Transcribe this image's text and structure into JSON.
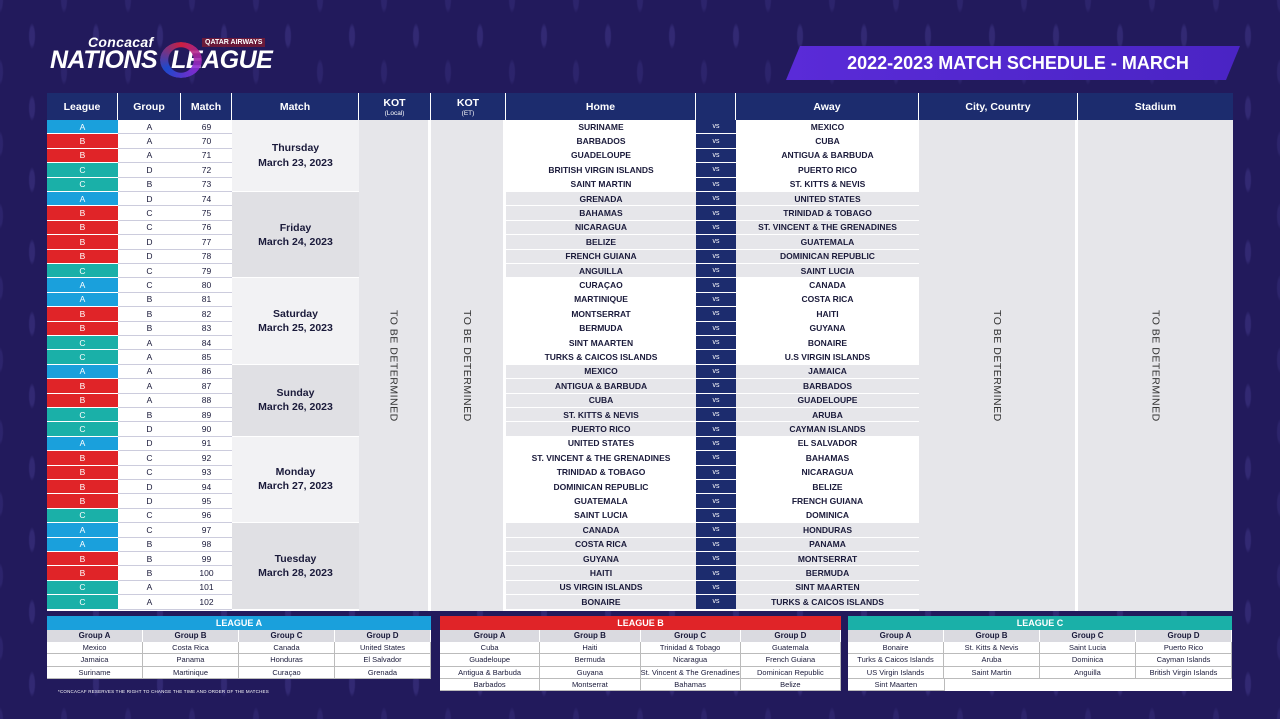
{
  "logo": {
    "small": "Concacaf",
    "big_left": "NATIONS",
    "big_right": "LEAGUE",
    "sponsor": "QATAR AIRWAYS"
  },
  "title": "2022-2023 MATCH SCHEDULE - MARCH",
  "headers": {
    "league": "League",
    "group": "Group",
    "match": "Match",
    "match_day": "Match",
    "kot_local": "KOT",
    "kot_local_sub": "(Local)",
    "kot_et": "KOT",
    "kot_et_sub": "(ET)",
    "home": "Home",
    "away": "Away",
    "city": "City, Country",
    "stadium": "Stadium"
  },
  "tbd": "TO BE DETERMINED",
  "vs": "vs",
  "league_colors": {
    "A": "#1aa0dc",
    "B": "#e02428",
    "C": "#1ab0a8"
  },
  "days": [
    {
      "name": "Thursday",
      "date": "March 23, 2023",
      "rows": 5
    },
    {
      "name": "Friday",
      "date": "March 24, 2023",
      "rows": 6
    },
    {
      "name": "Saturday",
      "date": "March 25, 2023",
      "rows": 6
    },
    {
      "name": "Sunday",
      "date": "March 26, 2023",
      "rows": 5
    },
    {
      "name": "Monday",
      "date": "March 27, 2023",
      "rows": 6
    },
    {
      "name": "Tuesday",
      "date": "March 28, 2023",
      "rows": 6
    }
  ],
  "matches": [
    {
      "league": "A",
      "group": "A",
      "match": "69",
      "home": "SURINAME",
      "away": "MEXICO"
    },
    {
      "league": "B",
      "group": "A",
      "match": "70",
      "home": "BARBADOS",
      "away": "CUBA"
    },
    {
      "league": "B",
      "group": "A",
      "match": "71",
      "home": "GUADELOUPE",
      "away": "ANTIGUA & BARBUDA"
    },
    {
      "league": "C",
      "group": "D",
      "match": "72",
      "home": "BRITISH VIRGIN ISLANDS",
      "away": "PUERTO RICO"
    },
    {
      "league": "C",
      "group": "B",
      "match": "73",
      "home": "SAINT MARTIN",
      "away": "ST. KITTS & NEVIS"
    },
    {
      "league": "A",
      "group": "D",
      "match": "74",
      "home": "GRENADA",
      "away": "UNITED STATES"
    },
    {
      "league": "B",
      "group": "C",
      "match": "75",
      "home": "BAHAMAS",
      "away": "TRINIDAD & TOBAGO"
    },
    {
      "league": "B",
      "group": "C",
      "match": "76",
      "home": "NICARAGUA",
      "away": "ST. VINCENT & THE GRENADINES"
    },
    {
      "league": "B",
      "group": "D",
      "match": "77",
      "home": "BELIZE",
      "away": "GUATEMALA"
    },
    {
      "league": "B",
      "group": "D",
      "match": "78",
      "home": "FRENCH GUIANA",
      "away": "DOMINICAN REPUBLIC"
    },
    {
      "league": "C",
      "group": "C",
      "match": "79",
      "home": "ANGUILLA",
      "away": "SAINT LUCIA"
    },
    {
      "league": "A",
      "group": "C",
      "match": "80",
      "home": "CURAÇAO",
      "away": "CANADA"
    },
    {
      "league": "A",
      "group": "B",
      "match": "81",
      "home": "MARTINIQUE",
      "away": "COSTA RICA"
    },
    {
      "league": "B",
      "group": "B",
      "match": "82",
      "home": "MONTSERRAT",
      "away": "HAITI"
    },
    {
      "league": "B",
      "group": "B",
      "match": "83",
      "home": "BERMUDA",
      "away": "GUYANA"
    },
    {
      "league": "C",
      "group": "A",
      "match": "84",
      "home": "SINT MAARTEN",
      "away": "BONAIRE"
    },
    {
      "league": "C",
      "group": "A",
      "match": "85",
      "home": "TURKS & CAICOS ISLANDS",
      "away": "U.S VIRGIN ISLANDS"
    },
    {
      "league": "A",
      "group": "A",
      "match": "86",
      "home": "MEXICO",
      "away": "JAMAICA"
    },
    {
      "league": "B",
      "group": "A",
      "match": "87",
      "home": "ANTIGUA & BARBUDA",
      "away": "BARBADOS"
    },
    {
      "league": "B",
      "group": "A",
      "match": "88",
      "home": "CUBA",
      "away": "GUADELOUPE"
    },
    {
      "league": "C",
      "group": "B",
      "match": "89",
      "home": "ST. KITTS & NEVIS",
      "away": "ARUBA"
    },
    {
      "league": "C",
      "group": "D",
      "match": "90",
      "home": "PUERTO RICO",
      "away": "CAYMAN ISLANDS"
    },
    {
      "league": "A",
      "group": "D",
      "match": "91",
      "home": "UNITED STATES",
      "away": "EL SALVADOR"
    },
    {
      "league": "B",
      "group": "C",
      "match": "92",
      "home": "ST. VINCENT & THE GRENADINES",
      "away": "BAHAMAS"
    },
    {
      "league": "B",
      "group": "C",
      "match": "93",
      "home": "TRINIDAD & TOBAGO",
      "away": "NICARAGUA"
    },
    {
      "league": "B",
      "group": "D",
      "match": "94",
      "home": "DOMINICAN REPUBLIC",
      "away": "BELIZE"
    },
    {
      "league": "B",
      "group": "D",
      "match": "95",
      "home": "GUATEMALA",
      "away": "FRENCH GUIANA"
    },
    {
      "league": "C",
      "group": "C",
      "match": "96",
      "home": "SAINT LUCIA",
      "away": "DOMINICA"
    },
    {
      "league": "A",
      "group": "C",
      "match": "97",
      "home": "CANADA",
      "away": "HONDURAS"
    },
    {
      "league": "A",
      "group": "B",
      "match": "98",
      "home": "COSTA RICA",
      "away": "PANAMA"
    },
    {
      "league": "B",
      "group": "B",
      "match": "99",
      "home": "GUYANA",
      "away": "MONTSERRAT"
    },
    {
      "league": "B",
      "group": "B",
      "match": "100",
      "home": "HAITI",
      "away": "BERMUDA"
    },
    {
      "league": "C",
      "group": "A",
      "match": "101",
      "home": "US VIRGIN ISLANDS",
      "away": "SINT MAARTEN"
    },
    {
      "league": "C",
      "group": "A",
      "match": "102",
      "home": "BONAIRE",
      "away": "TURKS & CAICOS ISLANDS"
    }
  ],
  "leagues": [
    {
      "title": "LEAGUE A",
      "color": "#1aa0dc",
      "groups": [
        "Group A",
        "Group B",
        "Group C",
        "Group D"
      ],
      "rows": [
        [
          "Mexico",
          "Costa Rica",
          "Canada",
          "United States"
        ],
        [
          "Jamaica",
          "Panama",
          "Honduras",
          "El Salvador"
        ],
        [
          "Suriname",
          "Martinique",
          "Curaçao",
          "Grenada"
        ]
      ]
    },
    {
      "title": "LEAGUE B",
      "color": "#e02428",
      "groups": [
        "Group A",
        "Group B",
        "Group C",
        "Group D"
      ],
      "rows": [
        [
          "Cuba",
          "Haiti",
          "Trinidad & Tobago",
          "Guatemala"
        ],
        [
          "Guadeloupe",
          "Bermuda",
          "Nicaragua",
          "French Guiana"
        ],
        [
          "Antigua & Barbuda",
          "Guyana",
          "St. Vincent & The Grenadines",
          "Dominican Republic"
        ],
        [
          "Barbados",
          "Montserrat",
          "Bahamas",
          "Belize"
        ]
      ]
    },
    {
      "title": "LEAGUE C",
      "color": "#1ab0a8",
      "groups": [
        "Group A",
        "Group B",
        "Group C",
        "Group D"
      ],
      "rows": [
        [
          "Bonaire",
          "St. Kitts & Nevis",
          "Saint Lucia",
          "Puerto Rico"
        ],
        [
          "Turks & Caicos Islands",
          "Aruba",
          "Dominica",
          "Cayman Islands"
        ],
        [
          "US Virgin Islands",
          "Saint Martin",
          "Anguilla",
          "British Virgin Islands"
        ],
        [
          "Sint Maarten",
          "",
          "",
          ""
        ]
      ]
    }
  ],
  "note": "*CONCACAF RESERVES THE RIGHT TO CHANGE THE TIME AND ORDER OF THE MATCHES"
}
